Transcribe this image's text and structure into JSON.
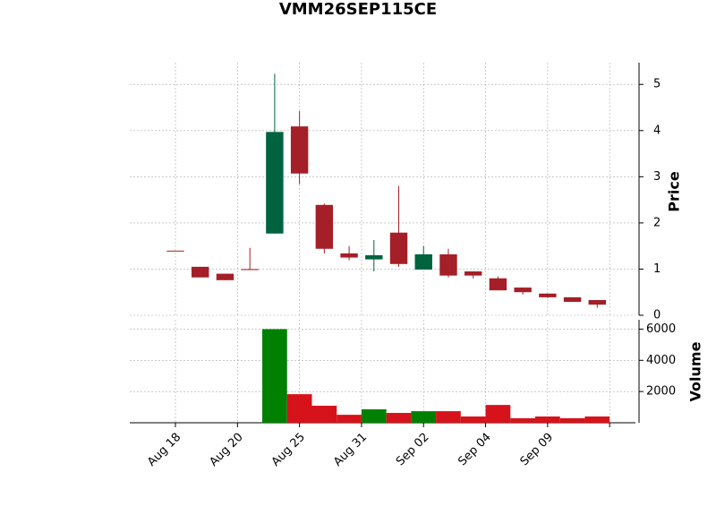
{
  "chart_data": {
    "type": "candlestick",
    "title": "VMM26SEP115CE",
    "y_label": "Price",
    "volume_label": "Volume",
    "open": [
      1.4,
      1.05,
      0.9,
      1.0,
      1.77,
      4.09,
      2.39,
      1.34,
      1.21,
      1.79,
      0.99,
      1.32,
      0.95,
      0.8,
      0.6,
      0.47,
      0.39,
      0.33
    ],
    "high": [
      1.4,
      1.05,
      0.9,
      1.46,
      5.23,
      4.42,
      2.42,
      1.5,
      1.63,
      2.8,
      1.5,
      1.44,
      0.95,
      0.84,
      0.6,
      0.47,
      0.39,
      0.33
    ],
    "low": [
      1.4,
      0.82,
      0.76,
      0.98,
      1.77,
      2.84,
      1.34,
      1.19,
      0.95,
      1.05,
      0.99,
      0.82,
      0.8,
      0.54,
      0.45,
      0.37,
      0.29,
      0.16
    ],
    "close": [
      1.4,
      0.82,
      0.76,
      0.98,
      3.97,
      3.07,
      1.44,
      1.25,
      1.3,
      1.11,
      1.32,
      0.86,
      0.86,
      0.54,
      0.5,
      0.39,
      0.29,
      0.23
    ],
    "volume": [
      0,
      0,
      0,
      0,
      6000,
      1830,
      1090,
      510,
      860,
      630,
      740,
      740,
      400,
      1140,
      290,
      400,
      290,
      400
    ],
    "up_color": "#006340",
    "down_color": "#a41f27",
    "volume_up_color": "#008000",
    "volume_down_color": "#d6121b",
    "xlim": [
      -1.84,
      18.54
    ],
    "xticks": [
      {
        "value": 0,
        "label": "Aug 18"
      },
      {
        "value": 2.5,
        "label": "Aug 20"
      },
      {
        "value": 5,
        "label": "Aug 25"
      },
      {
        "value": 7.5,
        "label": "Aug 31"
      },
      {
        "value": 10,
        "label": "Sep 02"
      },
      {
        "value": 12.5,
        "label": "Sep 04"
      },
      {
        "value": 15,
        "label": "Sep 09"
      },
      {
        "value": 17.5,
        "label": null
      }
    ],
    "ylim": [
      0,
      5.47
    ],
    "yticks": [
      0,
      1,
      2,
      3,
      4,
      5
    ],
    "volume_ylim": [
      0,
      6600
    ],
    "volume_yticks": [
      2000,
      4000,
      6000
    ],
    "grid": true
  }
}
